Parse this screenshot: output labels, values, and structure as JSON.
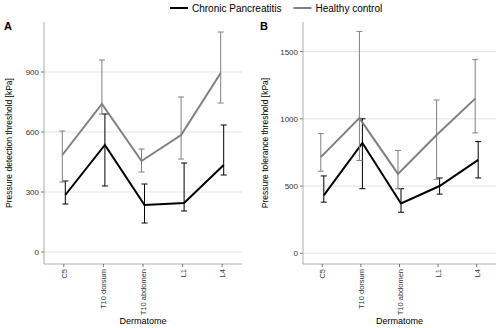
{
  "chart_data": [
    {
      "type": "line",
      "title": "A",
      "y_label": "Pressure detection threshold [kPa]",
      "x_label": "Dermatome",
      "categories": [
        "C5",
        "T10 dorsum",
        "T10 abdomen",
        "L1",
        "L4"
      ],
      "ylim": [
        -60,
        1150
      ],
      "yticks": [
        0,
        300,
        600,
        900
      ],
      "grid": true,
      "legend": "top",
      "series": [
        {
          "name": "Chronic Pancreatitis",
          "color": "#000000",
          "values": [
            285,
            535,
            235,
            245,
            435
          ],
          "lower": [
            240,
            330,
            145,
            205,
            385
          ],
          "upper": [
            355,
            690,
            340,
            445,
            635
          ]
        },
        {
          "name": "Healthy control",
          "color": "#808080",
          "values": [
            485,
            740,
            455,
            585,
            895
          ],
          "lower": [
            350,
            690,
            400,
            465,
            745
          ],
          "upper": [
            605,
            960,
            515,
            775,
            1100
          ]
        }
      ]
    },
    {
      "type": "line",
      "title": "B",
      "y_label": "Pressure tolerance threshold [kPa]",
      "x_label": "Dermatome",
      "categories": [
        "C5",
        "T10 dorsum",
        "T10 abdomen",
        "L1",
        "L4"
      ],
      "ylim": [
        -80,
        1720
      ],
      "yticks": [
        0,
        500,
        1000,
        1500
      ],
      "grid": true,
      "series": [
        {
          "color": "#000000",
          "values": [
            430,
            820,
            370,
            500,
            695
          ],
          "lower": [
            380,
            480,
            305,
            440,
            560
          ],
          "upper": [
            575,
            1000,
            480,
            560,
            830
          ]
        },
        {
          "color": "#808080",
          "values": [
            715,
            1005,
            590,
            880,
            1150
          ],
          "lower": [
            610,
            690,
            480,
            550,
            895
          ],
          "upper": [
            890,
            1650,
            765,
            1140,
            1440
          ]
        }
      ]
    }
  ]
}
